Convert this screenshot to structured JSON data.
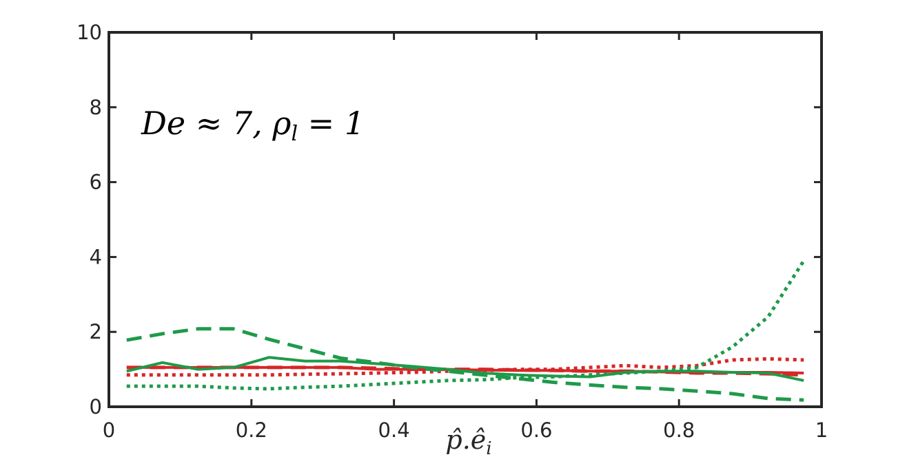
{
  "chart_data": {
    "type": "line",
    "xlabel": "p̂.ê_i",
    "ylabel": "",
    "xlim": [
      0,
      1
    ],
    "ylim": [
      0,
      10
    ],
    "xticks": [
      "0",
      "0.2",
      "0.4",
      "0.6",
      "0.8",
      "1"
    ],
    "yticks": [
      "0",
      "2",
      "4",
      "6",
      "8",
      "10"
    ],
    "annotation": "De ≈ 7, ρ_l = 1",
    "grid": false,
    "colors": {
      "red": "#d62728",
      "green": "#1f9a4a",
      "axis": "#262626"
    },
    "series": [
      {
        "color": "red",
        "style": "solid",
        "x": [
          0.025,
          0.075,
          0.125,
          0.175,
          0.225,
          0.275,
          0.325,
          0.375,
          0.425,
          0.475,
          0.525,
          0.575,
          0.625,
          0.675,
          0.725,
          0.775,
          0.825,
          0.875,
          0.925,
          0.975
        ],
        "y": [
          1.05,
          1.05,
          1.05,
          1.05,
          1.05,
          1.05,
          1.05,
          1.0,
          1.0,
          1.0,
          0.98,
          0.97,
          0.97,
          0.95,
          0.95,
          0.93,
          0.92,
          0.92,
          0.92,
          0.9
        ]
      },
      {
        "color": "red",
        "style": "dashed",
        "x": [
          0.025,
          0.075,
          0.125,
          0.175,
          0.225,
          0.275,
          0.325,
          0.375,
          0.425,
          0.475,
          0.525,
          0.575,
          0.625,
          0.675,
          0.725,
          0.775,
          0.825,
          0.875,
          0.925,
          0.975
        ],
        "y": [
          1.05,
          1.05,
          1.05,
          1.05,
          1.05,
          1.05,
          1.05,
          1.03,
          1.0,
          1.0,
          1.0,
          0.98,
          0.97,
          0.95,
          0.95,
          0.93,
          0.9,
          0.9,
          0.88,
          0.85
        ]
      },
      {
        "color": "red",
        "style": "dotted",
        "x": [
          0.025,
          0.075,
          0.125,
          0.175,
          0.225,
          0.275,
          0.325,
          0.375,
          0.425,
          0.475,
          0.525,
          0.575,
          0.625,
          0.675,
          0.725,
          0.775,
          0.825,
          0.875,
          0.925,
          0.975
        ],
        "y": [
          0.85,
          0.85,
          0.85,
          0.85,
          0.85,
          0.87,
          0.88,
          0.9,
          0.92,
          0.95,
          0.97,
          1.0,
          1.0,
          1.05,
          1.1,
          1.05,
          1.1,
          1.25,
          1.28,
          1.25
        ]
      },
      {
        "color": "green",
        "style": "solid",
        "x": [
          0.025,
          0.075,
          0.125,
          0.175,
          0.225,
          0.275,
          0.325,
          0.375,
          0.425,
          0.475,
          0.525,
          0.575,
          0.625,
          0.675,
          0.725,
          0.775,
          0.825,
          0.875,
          0.925,
          0.975
        ],
        "y": [
          0.95,
          1.18,
          1.0,
          1.05,
          1.32,
          1.22,
          1.22,
          1.15,
          1.08,
          1.0,
          0.9,
          0.85,
          0.82,
          0.8,
          0.92,
          0.95,
          0.95,
          0.92,
          0.9,
          0.7
        ]
      },
      {
        "color": "green",
        "style": "dashed",
        "x": [
          0.025,
          0.075,
          0.125,
          0.175,
          0.225,
          0.275,
          0.325,
          0.375,
          0.425,
          0.475,
          0.525,
          0.575,
          0.625,
          0.675,
          0.725,
          0.775,
          0.825,
          0.875,
          0.925,
          0.975
        ],
        "y": [
          1.78,
          1.95,
          2.08,
          2.08,
          1.8,
          1.55,
          1.3,
          1.18,
          1.05,
          0.95,
          0.85,
          0.75,
          0.65,
          0.58,
          0.52,
          0.48,
          0.42,
          0.35,
          0.22,
          0.18
        ]
      },
      {
        "color": "green",
        "style": "dotted",
        "x": [
          0.025,
          0.075,
          0.125,
          0.175,
          0.225,
          0.275,
          0.325,
          0.375,
          0.425,
          0.475,
          0.525,
          0.575,
          0.625,
          0.675,
          0.725,
          0.775,
          0.825,
          0.875,
          0.925,
          0.975
        ],
        "y": [
          0.55,
          0.55,
          0.55,
          0.5,
          0.48,
          0.52,
          0.55,
          0.6,
          0.65,
          0.7,
          0.72,
          0.78,
          0.8,
          0.85,
          0.9,
          0.95,
          1.05,
          1.6,
          2.4,
          3.9
        ]
      }
    ]
  }
}
